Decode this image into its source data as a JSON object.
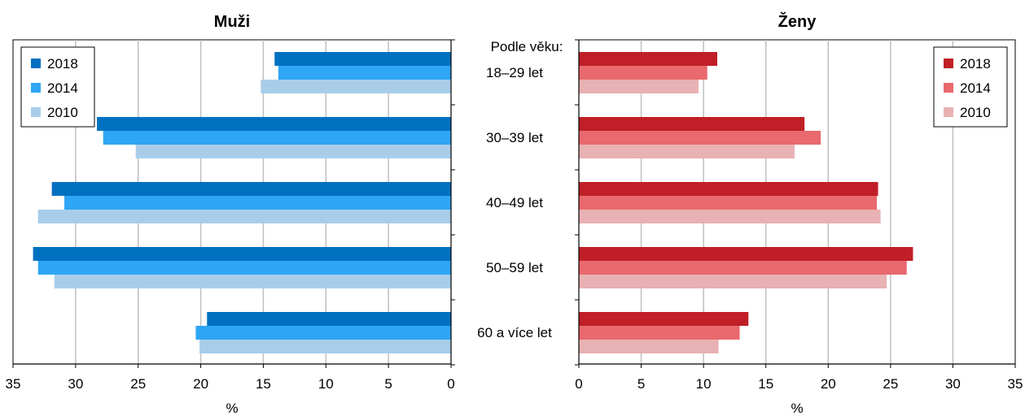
{
  "chart_data": [
    {
      "type": "bar",
      "orientation": "horizontal",
      "title": "Muži",
      "xlabel": "%",
      "categories": [
        "18–29 let",
        "30–39 let",
        "40–49 let",
        "50–59 let",
        "60 a více let"
      ],
      "xlim": [
        35,
        0
      ],
      "ticks": [
        "35",
        "30",
        "25",
        "20",
        "15",
        "10",
        "5",
        "0"
      ],
      "grid": true,
      "legend_position": "top-left",
      "series": [
        {
          "name": "2018",
          "color": "#0070c0",
          "values": [
            14.1,
            28.3,
            31.9,
            33.4,
            19.5
          ]
        },
        {
          "name": "2014",
          "color": "#2ea6f5",
          "values": [
            13.8,
            27.8,
            30.9,
            33.0,
            20.4
          ]
        },
        {
          "name": "2010",
          "color": "#a9cde9",
          "values": [
            15.2,
            25.2,
            33.0,
            31.7,
            20.1
          ]
        }
      ]
    },
    {
      "type": "bar",
      "orientation": "horizontal",
      "title": "Ženy",
      "xlabel": "%",
      "categories": [
        "18–29 let",
        "30–39 let",
        "40–49 let",
        "50–59 let",
        "60 a více let"
      ],
      "xlim": [
        0,
        35
      ],
      "ticks": [
        "0",
        "5",
        "10",
        "15",
        "20",
        "25",
        "30",
        "35"
      ],
      "grid": true,
      "legend_position": "top-right",
      "series": [
        {
          "name": "2018",
          "color": "#c01f27",
          "values": [
            11.1,
            18.1,
            24.0,
            26.8,
            13.6
          ]
        },
        {
          "name": "2014",
          "color": "#e8696e",
          "values": [
            10.3,
            19.4,
            23.9,
            26.3,
            12.9
          ]
        },
        {
          "name": "2010",
          "color": "#e8b1b3",
          "values": [
            9.6,
            17.3,
            24.2,
            24.7,
            11.2
          ]
        }
      ]
    }
  ],
  "category_header": "Podle věku:"
}
